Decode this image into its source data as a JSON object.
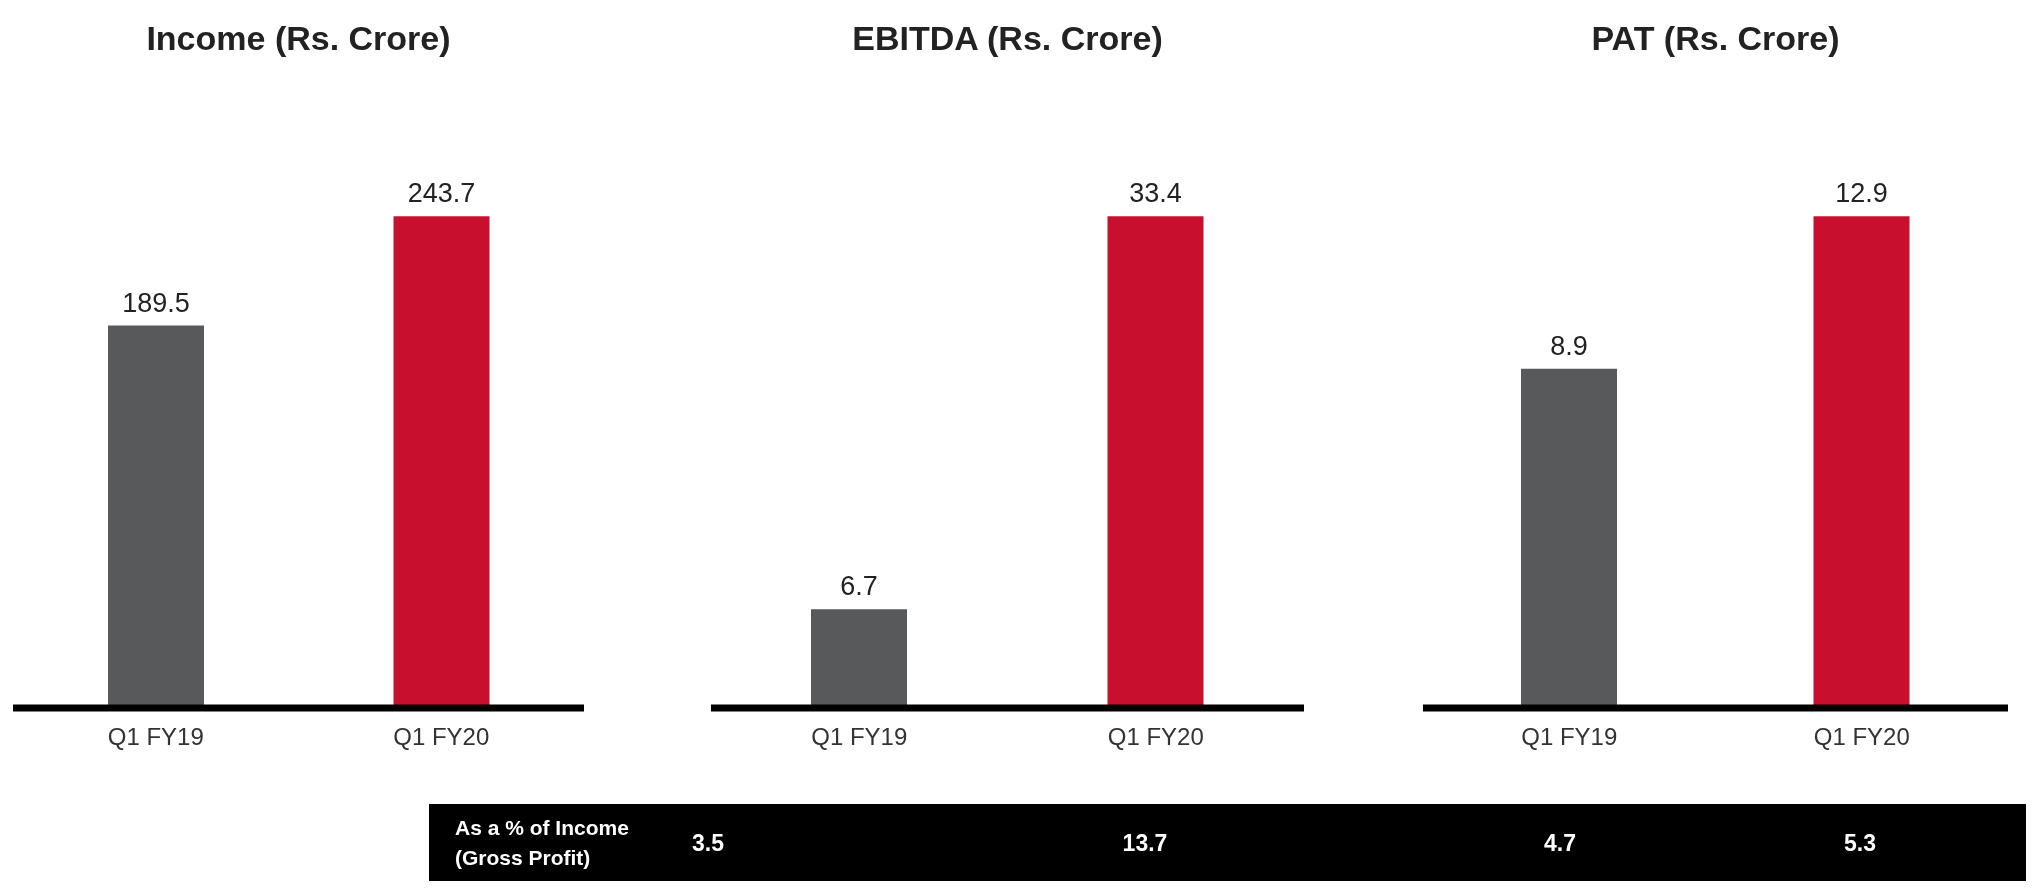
{
  "chart_data": [
    {
      "type": "bar",
      "title": "Income (Rs. Crore)",
      "categories": [
        "Q1 FY19",
        "Q1 FY20"
      ],
      "values": [
        189.5,
        243.7
      ],
      "colors": [
        "#58595b",
        "#c8102e"
      ],
      "data_labels": true
    },
    {
      "type": "bar",
      "title": "EBITDA (Rs. Crore)",
      "categories": [
        "Q1 FY19",
        "Q1 FY20"
      ],
      "values": [
        6.7,
        33.4
      ],
      "colors": [
        "#58595b",
        "#c8102e"
      ],
      "data_labels": true,
      "annotations": [
        "As a % of Income (Gross Profit)",
        "3.5",
        "13.7"
      ]
    },
    {
      "type": "bar",
      "title": "PAT (Rs. Crore)",
      "categories": [
        "Q1 FY19",
        "Q1 FY20"
      ],
      "values": [
        8.9,
        12.9
      ],
      "colors": [
        "#58595b",
        "#c8102e"
      ],
      "data_labels": true,
      "annotations": [
        "4.7",
        "5.3"
      ]
    }
  ]
}
